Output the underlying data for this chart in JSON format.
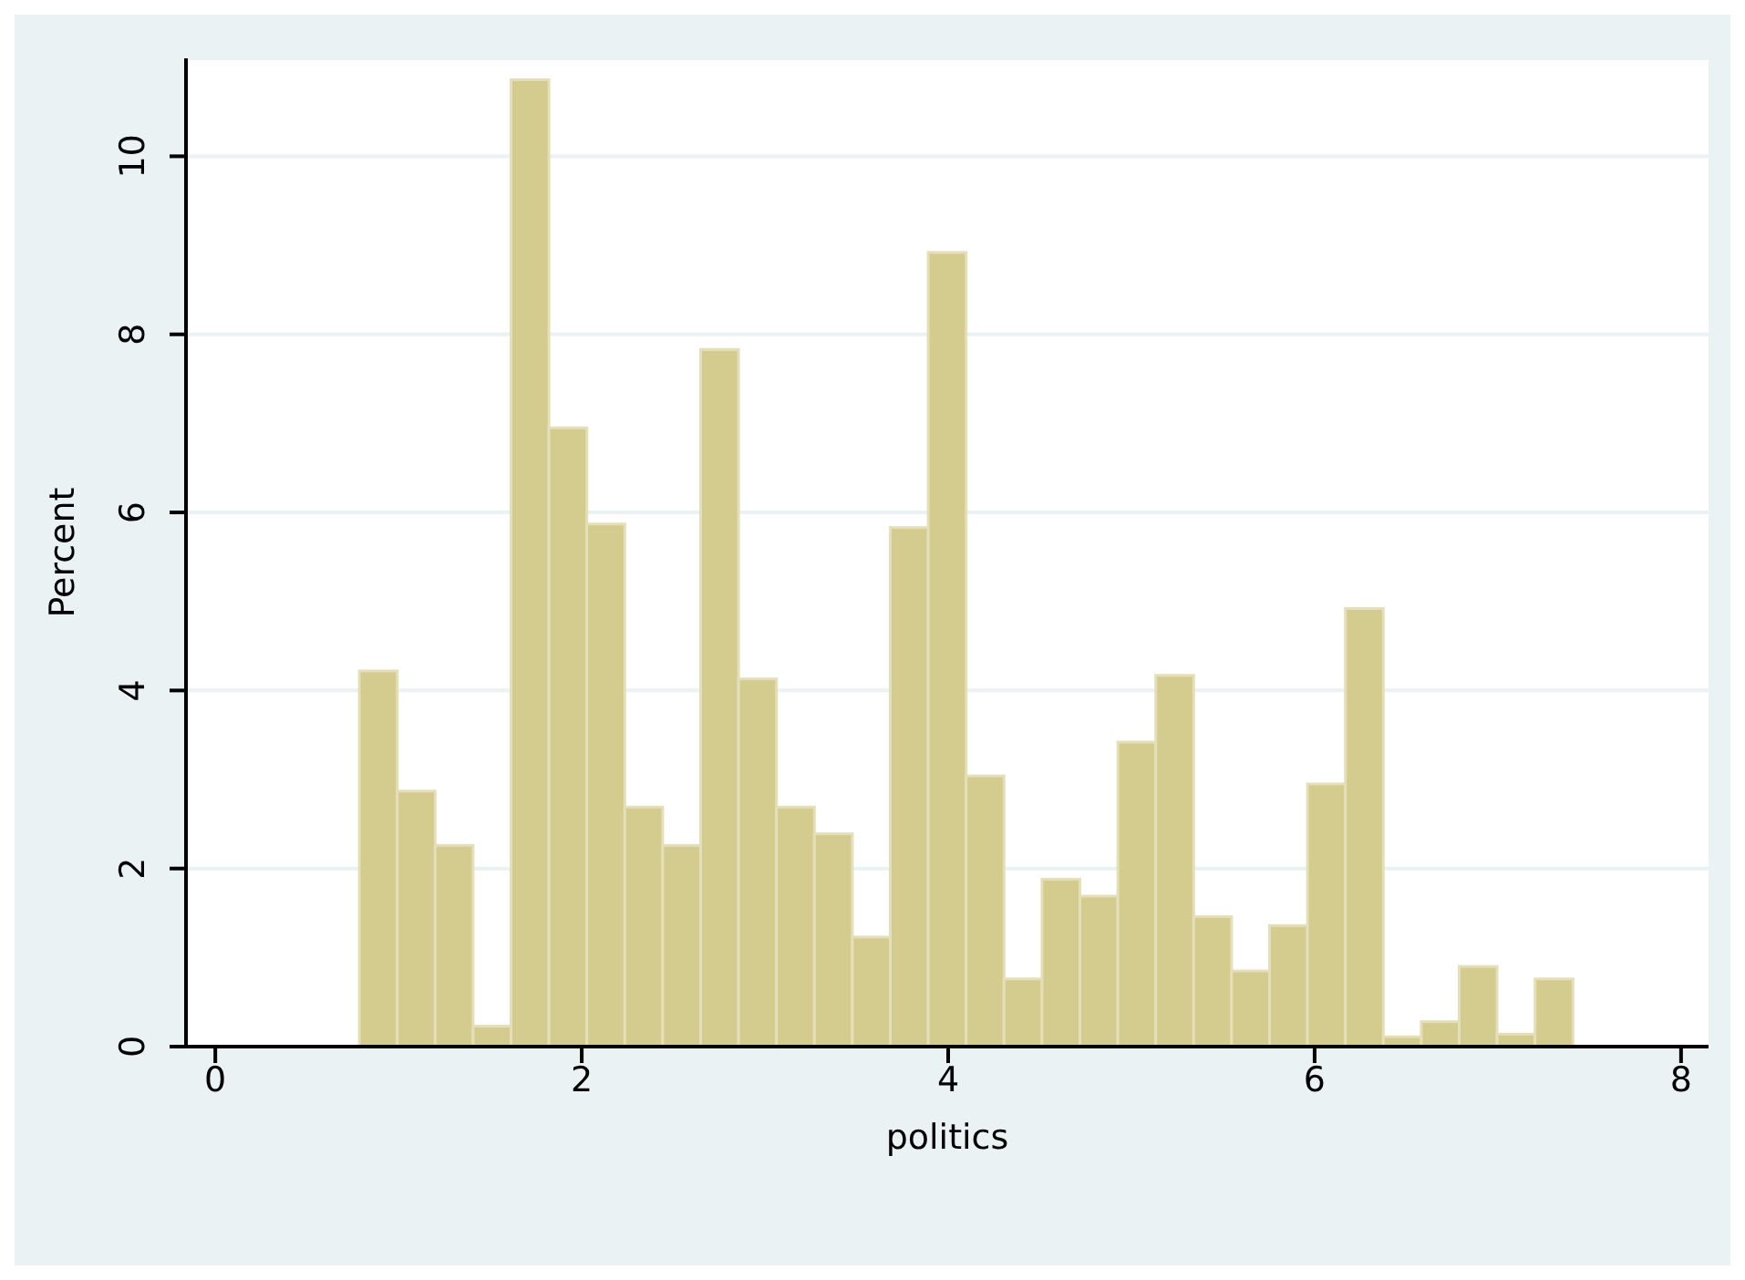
{
  "chart_data": {
    "type": "histogram",
    "xlabel": "politics",
    "ylabel": "Percent",
    "bins": [
      0.79,
      0.997,
      1.204,
      1.411,
      1.618,
      1.825,
      2.032,
      2.239,
      2.446,
      2.653,
      2.86,
      3.067,
      3.274,
      3.481,
      3.688,
      3.895,
      4.102,
      4.309,
      4.516,
      4.723,
      4.93,
      5.137,
      5.344,
      5.551,
      5.758,
      5.965,
      6.172,
      6.379,
      6.586,
      6.793,
      7.0,
      7.207,
      7.414
    ],
    "values": [
      4.22,
      2.87,
      2.26,
      0.23,
      10.86,
      6.95,
      5.87,
      2.69,
      2.26,
      7.83,
      4.13,
      2.69,
      2.39,
      1.23,
      5.83,
      8.92,
      3.04,
      0.76,
      1.88,
      1.69,
      3.42,
      4.17,
      1.46,
      0.85,
      1.36,
      2.95,
      4.92,
      0.11,
      0.28,
      0.9,
      0.14,
      0.76
    ],
    "color": "#d4cb8f",
    "xlim": [
      -0.16,
      8.15
    ],
    "xticks": [
      0,
      2,
      4,
      6,
      8
    ],
    "ylim": [
      0,
      11.1
    ],
    "yticks": [
      0,
      2,
      4,
      6,
      8,
      10
    ],
    "grid": "y",
    "legend": false
  }
}
